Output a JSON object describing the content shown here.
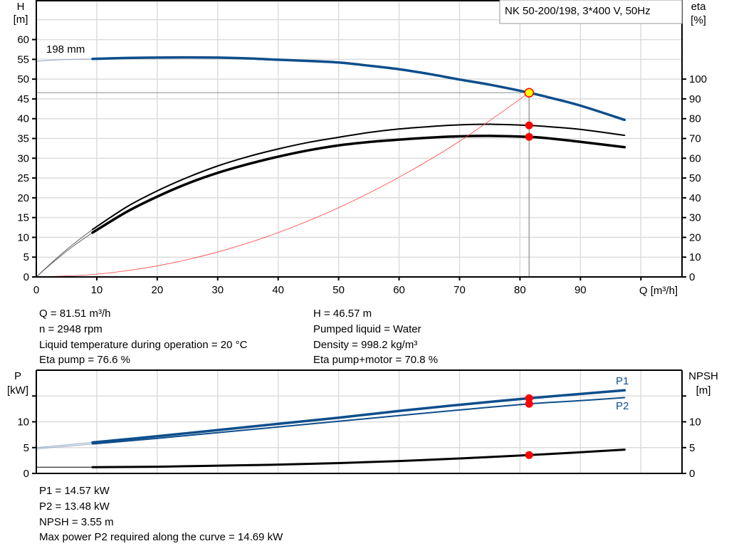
{
  "chart_data": [
    {
      "type": "line",
      "title": "NK 50-200/198, 3*400 V, 50Hz",
      "xlabel": "Q [m³/h]",
      "ylabel_left": "H",
      "ylabel_left_unit": "[m]",
      "ylabel_right": "eta",
      "ylabel_right_unit": "[%]",
      "xlim": [
        0,
        106.8
      ],
      "ylim_left": [
        0,
        70
      ],
      "ylim_right": [
        0,
        140
      ],
      "x_ticks": [
        "0",
        "10",
        "20",
        "30",
        "40",
        "50",
        "60",
        "70",
        "80",
        "90"
      ],
      "y_left_ticks": [
        "0",
        "5",
        "10",
        "15",
        "20",
        "25",
        "30",
        "35",
        "40",
        "45",
        "50",
        "55",
        "60"
      ],
      "y_right_ticks": [
        "0",
        "10",
        "20",
        "30",
        "40",
        "50",
        "60",
        "70",
        "80",
        "90",
        "100"
      ],
      "grid": true,
      "curve_label": "198 mm",
      "series": [
        {
          "key": "head",
          "axis": "left",
          "color": "#0d4e8b",
          "extrapolated": {
            "x": [
              0,
              4,
              9.3
            ],
            "y": [
              54.5,
              54.9,
              55.1
            ]
          },
          "x": [
            9.3,
            15,
            20,
            25,
            30,
            35,
            40,
            45,
            50,
            55,
            60,
            65,
            70,
            75,
            81.51,
            85,
            90,
            97.3
          ],
          "y": [
            55.1,
            55.35,
            55.45,
            55.5,
            55.45,
            55.25,
            54.9,
            54.6,
            54.2,
            53.4,
            52.5,
            51.3,
            49.9,
            48.6,
            46.57,
            45.3,
            43.3,
            39.7
          ]
        },
        {
          "key": "eta_pump",
          "axis": "right",
          "color": "#000000",
          "extrapolated": {
            "x": [
              0,
              3,
              6,
              9.3
            ],
            "y": [
              0,
              8.5,
              16.3,
              24
            ]
          },
          "x": [
            9.3,
            15,
            20,
            25,
            30,
            35,
            40,
            45,
            50,
            55,
            60,
            65,
            70,
            75,
            81.51,
            85,
            90,
            97.3
          ],
          "y": [
            24,
            35.5,
            43.5,
            50.3,
            56.1,
            60.8,
            64.7,
            68,
            70.6,
            73,
            74.8,
            76,
            76.9,
            77.2,
            76.6,
            75.9,
            74.6,
            71.6
          ]
        },
        {
          "key": "eta_pump_motor",
          "axis": "right",
          "color": "#000000",
          "extrapolated": {
            "x": [
              0,
              3,
              6,
              9.3
            ],
            "y": [
              0,
              8,
              15.3,
              22.4
            ]
          },
          "x": [
            9.3,
            15,
            20,
            25,
            30,
            35,
            40,
            45,
            50,
            55,
            60,
            65,
            70,
            75,
            81.51,
            85,
            90,
            97.3
          ],
          "y": [
            22.4,
            33,
            40.6,
            47.2,
            52.6,
            57,
            60.8,
            64,
            66.5,
            68.2,
            69.4,
            70.4,
            71.1,
            71.3,
            70.8,
            70,
            68.3,
            65.6
          ]
        },
        {
          "key": "system_curve",
          "axis": "left",
          "color": "#ff4040",
          "x": [
            0,
            10,
            20,
            30,
            40,
            50,
            60,
            70,
            81.51
          ],
          "y": [
            0,
            0.7,
            2.8,
            6.31,
            11.2,
            17.5,
            25.2,
            34.3,
            46.57
          ]
        }
      ],
      "operating_point": {
        "q": 81.51,
        "h": 46.57,
        "eta_pump": 76.6,
        "eta_pump_motor": 70.8
      }
    },
    {
      "type": "line",
      "ylabel_left": "P",
      "ylabel_left_unit": "[kW]",
      "ylabel_right": "NPSH",
      "ylabel_right_unit": "[m]",
      "xlim": [
        0,
        106.8
      ],
      "ylim": [
        0,
        20
      ],
      "y_left_ticks": [
        "0",
        "5",
        "10"
      ],
      "y_right_ticks": [
        "0",
        "5",
        "10"
      ],
      "grid": true,
      "series": [
        {
          "name": "P1",
          "key": "p1",
          "color": "#0d4e8b",
          "extrapolated": {
            "x": [
              0,
              9.3
            ],
            "y": [
              5.0,
              6.0
            ]
          },
          "x": [
            9.3,
            20,
            30,
            40,
            50,
            60,
            70,
            81.51,
            90,
            97.3
          ],
          "y": [
            6.0,
            7.2,
            8.4,
            9.6,
            10.8,
            12.1,
            13.3,
            14.57,
            15.4,
            16.1
          ]
        },
        {
          "name": "P2",
          "key": "p2",
          "color": "#0d4e8b",
          "extrapolated": {
            "x": [
              0,
              9.3
            ],
            "y": [
              4.75,
              5.7
            ]
          },
          "x": [
            9.3,
            20,
            30,
            40,
            50,
            60,
            70,
            81.51,
            90,
            97.3
          ],
          "y": [
            5.7,
            6.8,
            7.9,
            9.0,
            10.1,
            11.2,
            12.3,
            13.48,
            14.1,
            14.69
          ]
        },
        {
          "key": "npsh",
          "color": "#000000",
          "extrapolated": {
            "x": [
              0,
              9.3
            ],
            "y": [
              1.2,
              1.2
            ]
          },
          "x": [
            9.3,
            20,
            30,
            40,
            50,
            60,
            70,
            81.51,
            90,
            97.3
          ],
          "y": [
            1.2,
            1.3,
            1.5,
            1.7,
            2.0,
            2.4,
            2.9,
            3.55,
            4.1,
            4.6
          ]
        }
      ],
      "operating_point": {
        "q": 81.51,
        "p1": 14.57,
        "p2": 13.48,
        "npsh": 3.55
      }
    }
  ],
  "info_top": {
    "left": [
      "Q = 81.51 m³/h",
      "n = 2948 rpm",
      "Liquid temperature during operation = 20 °C",
      "Eta pump = 76.6 %"
    ],
    "right": [
      "H = 46.57 m",
      "Pumped liquid = Water",
      "Density = 998.2 kg/m³",
      "Eta pump+motor = 70.8 %"
    ]
  },
  "info_bottom": [
    "P1 = 14.57 kW",
    "P2 = 13.48 kW",
    "NPSH = 3.55 m",
    "Max power P2 required along the curve = 14.69 kW"
  ],
  "colors": {
    "head": "#0d4e8b",
    "power": "#0d4e8b",
    "eta": "#000000",
    "system": "#ff4040",
    "op_dot": "#ff0000",
    "op_head_fill": "#ffff00"
  }
}
